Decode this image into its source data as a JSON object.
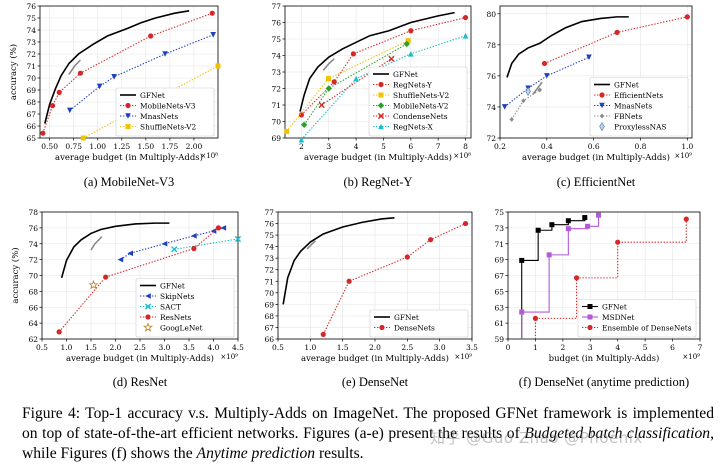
{
  "caption": {
    "lead": "Figure 4: Top-1 accuracy v.s. Multiply-Adds on ImageNet. The proposed GFNet framework is implemented on top of state-of-the-art efficient networks. Figures (a-e) present the results of ",
    "em1": "Budgeted batch classification",
    "mid": ", while Figures (f) shows the ",
    "em2": "Anytime prediction",
    "tail": " results."
  },
  "watermark": "知乎 @Guo Zhao @Phoenix",
  "colors": {
    "gfnet": "#000000",
    "red": "#d62728",
    "blue": "#1f3fbf",
    "yellow": "#f2c200",
    "green": "#2ca02c",
    "cyan": "#17becf",
    "grey": "#8a8a8a",
    "purple": "#b35ad8"
  },
  "chart_data": [
    {
      "id": "a",
      "type": "line",
      "caption": "(a) MobileNet-V3",
      "xlabel": "average budget (in Multiply-Adds)",
      "ylabel": "accuracy (%)",
      "x_exponent": "×10⁸",
      "xlim": [
        0.4,
        2.25
      ],
      "ylim": [
        65,
        76
      ],
      "xticks": [
        "0.50",
        "0.75",
        "1.00",
        "1.25",
        "1.50",
        "1.75",
        "2.00"
      ],
      "xtick_values": [
        0.5,
        0.75,
        1.0,
        1.25,
        1.5,
        1.75,
        2.0
      ],
      "yticks": [
        65,
        66,
        67,
        68,
        69,
        70,
        71,
        72,
        73,
        74,
        75,
        76
      ],
      "legend": "lower-right",
      "series": [
        {
          "name": "GFNet",
          "style": "gfnet",
          "color": "gfnet",
          "x": [
            0.45,
            0.5,
            0.56,
            0.62,
            0.7,
            0.8,
            0.95,
            1.1,
            1.3,
            1.45,
            1.6,
            1.8,
            1.95
          ],
          "y": [
            66.2,
            67.8,
            69.1,
            70.2,
            71.2,
            72.0,
            72.8,
            73.5,
            74.1,
            74.6,
            75.0,
            75.4,
            75.6
          ]
        },
        {
          "name": "",
          "style": "grey",
          "color": "grey",
          "x": [
            0.7,
            0.76,
            0.82
          ],
          "y": [
            70.3,
            71.0,
            71.5
          ]
        },
        {
          "name": "MobileNets-V3",
          "style": "dotted",
          "marker": "circle",
          "color": "red",
          "x": [
            0.43,
            0.53,
            0.6,
            0.82,
            1.55,
            2.19
          ],
          "y": [
            65.4,
            67.7,
            68.8,
            70.4,
            73.5,
            75.4
          ]
        },
        {
          "name": "MnasNets",
          "style": "dotted",
          "marker": "triangle-down",
          "color": "blue",
          "x": [
            0.71,
            1.02,
            1.17,
            1.7,
            2.2
          ],
          "y": [
            67.3,
            69.3,
            70.1,
            72.0,
            73.6
          ]
        },
        {
          "name": "ShuffleNets-V2",
          "style": "dotted",
          "marker": "square",
          "color": "yellow",
          "x": [
            0.85,
            2.25
          ],
          "y": [
            65.0,
            71.0
          ]
        }
      ]
    },
    {
      "id": "b",
      "type": "line",
      "caption": "(b) RegNet-Y",
      "xlabel": "average budget (in Multiply-Adds)",
      "ylabel": "",
      "x_exponent": "×10⁸",
      "xlim": [
        1.4,
        8.2
      ],
      "ylim": [
        69,
        77
      ],
      "xticks": [
        "2",
        "3",
        "4",
        "5",
        "6",
        "7",
        "8"
      ],
      "xtick_values": [
        2,
        3,
        4,
        5,
        6,
        7,
        8
      ],
      "yticks": [
        69,
        70,
        71,
        72,
        73,
        74,
        75,
        76,
        77
      ],
      "legend": "lower-right",
      "series": [
        {
          "name": "GFNet",
          "style": "gfnet",
          "color": "gfnet",
          "x": [
            1.95,
            2.1,
            2.3,
            2.6,
            3.0,
            3.5,
            4.0,
            4.5,
            5.2,
            6.0,
            7.0,
            7.6
          ],
          "y": [
            70.6,
            71.6,
            72.6,
            73.3,
            73.9,
            74.4,
            74.8,
            75.2,
            75.5,
            76.0,
            76.4,
            76.6
          ]
        },
        {
          "name": "",
          "style": "grey",
          "color": "grey",
          "x": [
            2.8,
            3.0,
            3.2
          ],
          "y": [
            73.1,
            73.5,
            73.8
          ]
        },
        {
          "name": "RegNets-Y",
          "style": "dotted",
          "marker": "circle",
          "color": "red",
          "x": [
            2.0,
            3.2,
            3.9,
            6.0,
            8.0
          ],
          "y": [
            70.4,
            72.4,
            74.1,
            75.5,
            76.3
          ]
        },
        {
          "name": "ShuffleNets-V2",
          "style": "dotted",
          "marker": "square",
          "color": "yellow",
          "x": [
            1.46,
            2.99,
            5.9
          ],
          "y": [
            69.4,
            72.6,
            74.9
          ]
        },
        {
          "name": "MobileNets-V2",
          "style": "dotted",
          "marker": "diamond",
          "color": "green",
          "x": [
            2.1,
            3.0,
            5.85
          ],
          "y": [
            69.8,
            72.0,
            74.7
          ]
        },
        {
          "name": "CondenseNets",
          "style": "dotted",
          "marker": "x",
          "color": "red",
          "x": [
            2.74,
            5.29
          ],
          "y": [
            71.0,
            73.8
          ]
        },
        {
          "name": "RegNets-X",
          "style": "dotted",
          "marker": "triangle-up",
          "color": "cyan",
          "x": [
            2.0,
            4.0,
            6.0,
            8.0
          ],
          "y": [
            68.9,
            72.6,
            74.1,
            75.2
          ]
        }
      ]
    },
    {
      "id": "c",
      "type": "line",
      "caption": "(c) EfficientNet",
      "xlabel": "average budget (in Multiply-Adds)",
      "ylabel": "",
      "x_exponent": "×10⁹",
      "xlim": [
        0.2,
        1.02
      ],
      "ylim": [
        72,
        80.5
      ],
      "xticks": [
        "0.2",
        "0.4",
        "0.6",
        "0.8",
        "1.0"
      ],
      "xtick_values": [
        0.2,
        0.4,
        0.6,
        0.8,
        1.0
      ],
      "yticks": [
        72,
        74,
        76,
        78,
        80
      ],
      "legend": "lower-right",
      "series": [
        {
          "name": "GFNet",
          "style": "gfnet",
          "color": "gfnet",
          "x": [
            0.23,
            0.25,
            0.28,
            0.32,
            0.37,
            0.42,
            0.48,
            0.55,
            0.63,
            0.7,
            0.75
          ],
          "y": [
            75.9,
            76.8,
            77.4,
            77.8,
            78.1,
            78.6,
            79.1,
            79.5,
            79.7,
            79.8,
            79.8
          ]
        },
        {
          "name": "",
          "style": "grey",
          "color": "grey",
          "x": [
            0.34,
            0.36,
            0.38
          ],
          "y": [
            74.8,
            75.2,
            75.6
          ]
        },
        {
          "name": "EfficientNets",
          "style": "dotted",
          "marker": "circle",
          "color": "red",
          "x": [
            0.39,
            0.7,
            1.0
          ],
          "y": [
            76.8,
            78.8,
            79.8
          ]
        },
        {
          "name": "MnasNets",
          "style": "dotted",
          "marker": "triangle-down",
          "color": "blue",
          "x": [
            0.22,
            0.32,
            0.4,
            0.58
          ],
          "y": [
            74.0,
            75.2,
            76.0,
            77.2
          ]
        },
        {
          "name": "FBNets",
          "style": "dotted",
          "marker": "diamond-small",
          "color": "grey",
          "x": [
            0.25,
            0.3,
            0.37
          ],
          "y": [
            73.2,
            74.4,
            75.1
          ]
        },
        {
          "name": "ProxylessNAS",
          "style": "none",
          "marker": "thin-diamond",
          "color": "blue",
          "x": [
            0.32
          ],
          "y": [
            75.0
          ]
        }
      ]
    },
    {
      "id": "d",
      "type": "line",
      "caption": "(d) ResNet",
      "xlabel": "average budget (in Multiply-Adds)",
      "ylabel": "accuracy (%)",
      "x_exponent": "×10⁹",
      "xlim": [
        0.5,
        4.5
      ],
      "ylim": [
        62,
        78
      ],
      "xticks": [
        "0.5",
        "1.0",
        "1.5",
        "2.0",
        "2.5",
        "3.0",
        "3.5",
        "4.0",
        "4.5"
      ],
      "xtick_values": [
        0.5,
        1.0,
        1.5,
        2.0,
        2.5,
        3.0,
        3.5,
        4.0,
        4.5
      ],
      "yticks": [
        62,
        64,
        66,
        68,
        70,
        72,
        74,
        76,
        78
      ],
      "legend": "lower-right",
      "series": [
        {
          "name": "GFNet",
          "style": "gfnet",
          "color": "gfnet",
          "x": [
            0.9,
            1.0,
            1.15,
            1.3,
            1.5,
            1.7,
            2.0,
            2.4,
            2.8,
            3.1
          ],
          "y": [
            69.7,
            71.9,
            73.6,
            74.5,
            75.3,
            75.8,
            76.2,
            76.5,
            76.6,
            76.6
          ]
        },
        {
          "name": "",
          "style": "grey",
          "color": "grey",
          "x": [
            1.5,
            1.58,
            1.66,
            1.72
          ],
          "y": [
            73.2,
            74.0,
            74.5,
            74.9
          ]
        },
        {
          "name": "SkipNets",
          "style": "dotted",
          "marker": "triangle-left",
          "color": "blue",
          "x": [
            2.1,
            2.3,
            3.0,
            3.6,
            4.0,
            4.2
          ],
          "y": [
            72.0,
            72.8,
            74.0,
            75.0,
            75.6,
            76.0
          ]
        },
        {
          "name": "SACT",
          "style": "dotted",
          "marker": "x",
          "color": "cyan",
          "x": [
            3.2,
            4.5
          ],
          "y": [
            73.3,
            74.6
          ]
        },
        {
          "name": "ResNets",
          "style": "dotted",
          "marker": "circle",
          "color": "red",
          "x": [
            0.85,
            1.8,
            3.6,
            4.1
          ],
          "y": [
            62.9,
            69.8,
            73.4,
            76.0
          ]
        },
        {
          "name": "GoogLeNet",
          "style": "none",
          "marker": "star",
          "color": "star",
          "x": [
            1.55
          ],
          "y": [
            68.8
          ]
        }
      ]
    },
    {
      "id": "e",
      "type": "line",
      "caption": "(e) DenseNet",
      "xlabel": "average budget (in Multiply-Adds)",
      "ylabel": "",
      "x_exponent": "×10⁹",
      "xlim": [
        0.5,
        3.5
      ],
      "ylim": [
        66,
        77
      ],
      "xticks": [
        "0.5",
        "1.0",
        "1.5",
        "2.0",
        "2.5",
        "3.0",
        "3.5"
      ],
      "xtick_values": [
        0.5,
        1.0,
        1.5,
        2.0,
        2.5,
        3.0,
        3.5
      ],
      "yticks": [
        66,
        67,
        68,
        69,
        70,
        71,
        72,
        73,
        74,
        75,
        76,
        77
      ],
      "legend": "lower-right",
      "series": [
        {
          "name": "GFNet",
          "style": "gfnet",
          "color": "gfnet",
          "x": [
            0.58,
            0.65,
            0.75,
            0.85,
            1.0,
            1.2,
            1.5,
            1.8,
            2.1,
            2.3
          ],
          "y": [
            69.0,
            71.3,
            72.8,
            73.6,
            74.4,
            75.1,
            75.7,
            76.1,
            76.4,
            76.5
          ]
        },
        {
          "name": "",
          "style": "grey",
          "color": "grey",
          "x": [
            0.95,
            1.02,
            1.08
          ],
          "y": [
            73.8,
            74.2,
            74.5
          ]
        },
        {
          "name": "DenseNets",
          "style": "dotted",
          "marker": "circle",
          "color": "red",
          "x": [
            1.2,
            1.6,
            2.5,
            2.86,
            3.4
          ],
          "y": [
            66.4,
            71.0,
            73.1,
            74.6,
            76.0
          ]
        }
      ]
    },
    {
      "id": "f",
      "type": "line",
      "caption": "(f) DenseNet (anytime prediction)",
      "xlabel": "budget (in Multiply-Adds)",
      "ylabel": "",
      "x_exponent": "×10⁹",
      "xlim": [
        0,
        7
      ],
      "ylim": [
        59,
        75
      ],
      "xticks": [
        "0",
        "1",
        "2",
        "3",
        "4",
        "5",
        "6",
        "7"
      ],
      "xtick_values": [
        0,
        1,
        2,
        3,
        4,
        5,
        6,
        7
      ],
      "yticks": [
        59,
        61,
        63,
        65,
        67,
        69,
        71,
        73,
        75
      ],
      "legend": "lower-right",
      "series": [
        {
          "name": "GFNet",
          "style": "step",
          "marker": "square",
          "color": "gfnet",
          "x": [
            0.5,
            0.5,
            1.1,
            1.1,
            1.6,
            1.6,
            2.2,
            2.2,
            2.8,
            2.8
          ],
          "y": [
            59,
            68.9,
            68.9,
            72.7,
            72.7,
            73.4,
            73.4,
            73.9,
            73.9,
            74.3
          ]
        },
        {
          "name": "MSDNet",
          "style": "step",
          "marker": "square",
          "color": "purple",
          "x": [
            0.5,
            0.5,
            1.5,
            1.5,
            2.2,
            2.2,
            2.9,
            2.9,
            3.3,
            3.3
          ],
          "y": [
            59,
            62.4,
            62.4,
            69.6,
            69.6,
            72.9,
            72.9,
            73.2,
            73.2,
            74.6
          ]
        },
        {
          "name": "Ensemble of DenseNets",
          "style": "step-dotted",
          "marker": "circle",
          "color": "red",
          "x": [
            1.0,
            1.0,
            2.5,
            2.5,
            4.0,
            4.0,
            6.5,
            6.5
          ],
          "y": [
            59,
            61.6,
            61.6,
            66.7,
            66.7,
            71.2,
            71.2,
            74.1
          ]
        }
      ]
    }
  ]
}
